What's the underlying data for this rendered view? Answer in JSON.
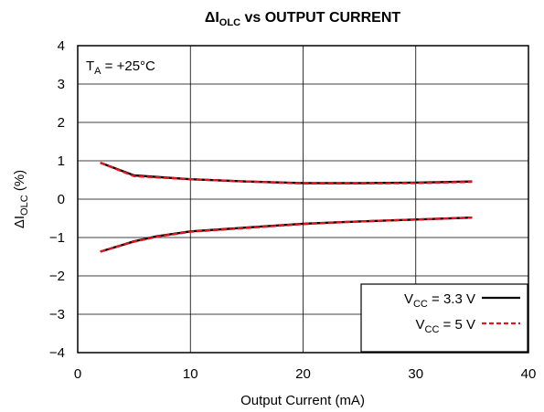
{
  "chart_data": {
    "type": "line",
    "title": {
      "main": "ΔI",
      "sub": "OLC",
      "rest": " vs OUTPUT CURRENT"
    },
    "xlabel": "Output Current (mA)",
    "ylabel": {
      "main": "ΔI",
      "sub": "OLC",
      "rest": " (%)"
    },
    "xlim": [
      0,
      40
    ],
    "ylim": [
      -4,
      4
    ],
    "x_ticks": [
      0,
      10,
      20,
      30,
      40
    ],
    "y_ticks": [
      -4,
      -3,
      -2,
      -1,
      0,
      1,
      2,
      3,
      4
    ],
    "x_tick_labels": [
      "0",
      "10",
      "20",
      "30",
      "40"
    ],
    "y_tick_labels": [
      "−4",
      "−3",
      "−2",
      "−1",
      "0",
      "1",
      "2",
      "3",
      "4"
    ],
    "grid": true,
    "annotation": {
      "main": "T",
      "sub": "A",
      "rest": " = +25°C"
    },
    "legend_position": "bottom-right",
    "series": [
      {
        "name": {
          "main": "V",
          "sub": "CC",
          "rest": " = 3.3 V"
        },
        "color": "#000000",
        "style": "solid",
        "upper": {
          "x": [
            2,
            5,
            10,
            15,
            20,
            25,
            30,
            35
          ],
          "y": [
            0.95,
            0.62,
            0.52,
            0.46,
            0.42,
            0.42,
            0.43,
            0.46
          ]
        },
        "lower": {
          "x": [
            2,
            5,
            7,
            10,
            15,
            20,
            25,
            30,
            35
          ],
          "y": [
            -1.37,
            -1.1,
            -0.97,
            -0.84,
            -0.74,
            -0.64,
            -0.58,
            -0.53,
            -0.48
          ]
        }
      },
      {
        "name": {
          "main": "V",
          "sub": "CC",
          "rest": " = 5 V"
        },
        "color": "#e8141d",
        "style": "dashed",
        "upper": {
          "x": [
            2,
            5,
            10,
            15,
            20,
            25,
            30,
            35
          ],
          "y": [
            0.95,
            0.6,
            0.52,
            0.46,
            0.41,
            0.41,
            0.42,
            0.45
          ]
        },
        "lower": {
          "x": [
            2,
            5,
            7,
            10,
            15,
            20,
            25,
            30,
            35
          ],
          "y": [
            -1.37,
            -1.11,
            -0.98,
            -0.85,
            -0.75,
            -0.65,
            -0.58,
            -0.53,
            -0.48
          ]
        }
      }
    ]
  }
}
